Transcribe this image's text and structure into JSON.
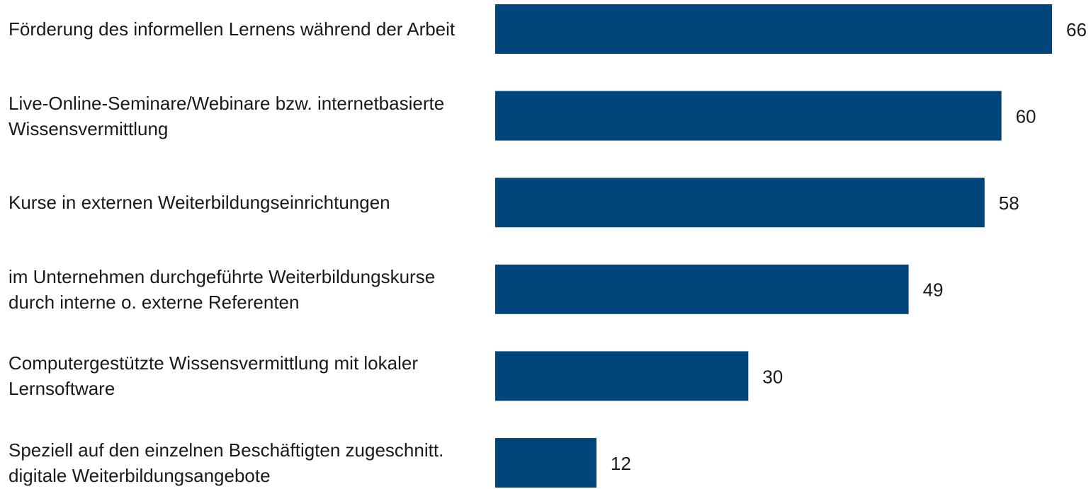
{
  "chart_data": {
    "type": "bar",
    "orientation": "horizontal",
    "categories": [
      "Förderung des informellen Lernens während der Arbeit",
      "Live-Online-Seminare/Webinare bzw. internetbasierte Wissensvermittlung",
      "Kurse in externen Weiterbildungseinrichtungen",
      "im Unternehmen durchgeführte Weiterbildungskurse durch interne o. externe Referenten",
      "Computergestützte Wissensvermittlung mit lokaler Lernsoftware",
      "Speziell auf den einzelnen Beschäftigten zugeschnitt. digitale Weiterbildungsangebote"
    ],
    "values": [
      66,
      60,
      58,
      49,
      30,
      12
    ],
    "color": "#00467a"
  }
}
